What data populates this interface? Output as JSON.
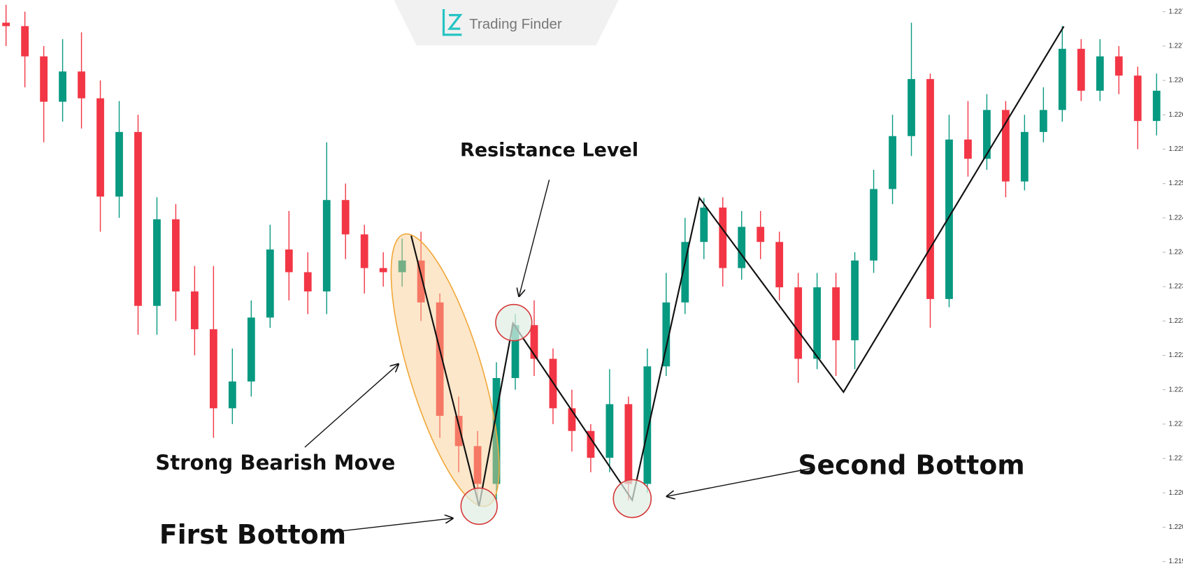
{
  "chart_data": {
    "type": "candlestick",
    "watermark": "Trading Finder",
    "annotations": [
      "Resistance Level",
      "Strong Bearish Move",
      "First Bottom",
      "Second Bottom"
    ],
    "up_color": "#089981",
    "down_color": "#f23645",
    "ylim": [
      1.21913,
      1.22767
    ],
    "yticks": [
      {
        "value": 1.2275,
        "label": "1.227"
      },
      {
        "value": 1.227,
        "label": "1.227"
      },
      {
        "value": 1.2265,
        "label": "1.226"
      },
      {
        "value": 1.226,
        "label": "1.226"
      },
      {
        "value": 1.2255,
        "label": "1.225"
      },
      {
        "value": 1.225,
        "label": "1.225"
      },
      {
        "value": 1.2245,
        "label": "1.224"
      },
      {
        "value": 1.224,
        "label": "1.224"
      },
      {
        "value": 1.2235,
        "label": "1.223"
      },
      {
        "value": 1.223,
        "label": "1.223"
      },
      {
        "value": 1.2225,
        "label": "1.222"
      },
      {
        "value": 1.222,
        "label": "1.222"
      },
      {
        "value": 1.2215,
        "label": "1.221"
      },
      {
        "value": 1.221,
        "label": "1.221"
      },
      {
        "value": 1.2205,
        "label": "1.220"
      },
      {
        "value": 1.22,
        "label": "1.220"
      },
      {
        "value": 1.2195,
        "label": "1.219"
      }
    ],
    "open": [
      1.22734,
      1.22729,
      1.22685,
      1.22619,
      1.22663,
      1.22624,
      1.22481,
      1.22575,
      1.22322,
      1.22448,
      1.22343,
      1.22288,
      1.22173,
      1.22212,
      1.22305,
      1.22404,
      1.22371,
      1.22343,
      1.22476,
      1.22426,
      1.22377,
      1.22371,
      1.22388,
      1.22327,
      1.22162,
      1.22118,
      1.22063,
      1.22217,
      1.22294,
      1.22245,
      1.22173,
      1.2214,
      1.22101,
      1.22179,
      1.22063,
      1.22234,
      1.22327,
      1.22415,
      1.22465,
      1.22377,
      1.22437,
      1.22415,
      1.22349,
      1.22245,
      1.22349,
      1.22272,
      1.22388,
      1.22492,
      1.22569,
      1.22652,
      1.22332,
      1.22564,
      1.22536,
      1.22607,
      1.22503,
      1.22575,
      1.22607,
      1.22696,
      1.22635,
      1.22685,
      1.22657,
      1.22591
    ],
    "high": [
      1.2276,
      1.2275,
      1.227,
      1.2271,
      1.2272,
      1.2265,
      1.2262,
      1.226,
      1.2248,
      1.2247,
      1.2238,
      1.2238,
      1.2226,
      1.2233,
      1.2244,
      1.2246,
      1.224,
      1.2256,
      1.225,
      1.2244,
      1.224,
      1.2242,
      1.2243,
      1.2234,
      1.2219,
      1.2214,
      1.2224,
      1.2231,
      1.2233,
      1.2226,
      1.222,
      1.2215,
      1.2223,
      1.2219,
      1.2226,
      1.2237,
      1.2245,
      1.22479,
      1.2248,
      1.2246,
      1.2246,
      1.2243,
      1.2237,
      1.2237,
      1.2237,
      1.224,
      1.2252,
      1.226,
      1.22734,
      1.2266,
      1.226,
      1.2262,
      1.2263,
      1.2262,
      1.226,
      1.2264,
      1.22729,
      1.2271,
      1.2271,
      1.227,
      1.2267,
      1.2266
    ],
    "low": [
      1.227,
      1.2264,
      1.2256,
      1.2259,
      1.2258,
      1.2243,
      1.2245,
      1.2228,
      1.2228,
      1.223,
      1.2225,
      1.2213,
      1.2215,
      1.2219,
      1.2229,
      1.2233,
      1.2231,
      1.2231,
      1.2239,
      1.2234,
      1.2235,
      1.2235,
      1.223,
      1.2213,
      1.2208,
      1.22032,
      1.2204,
      1.222,
      1.2222,
      1.2215,
      1.2211,
      1.2208,
      1.2208,
      1.22039,
      1.2205,
      1.2222,
      1.2231,
      1.2239,
      1.2235,
      1.2236,
      1.2239,
      1.2233,
      1.2221,
      1.2223,
      1.2222,
      1.2223,
      1.2237,
      1.2247,
      1.2254,
      1.2229,
      1.2232,
      1.2251,
      1.2252,
      1.2248,
      1.2249,
      1.2256,
      1.2259,
      1.2262,
      1.2262,
      1.2263,
      1.2255,
      1.2257
    ],
    "close": [
      1.22729,
      1.22685,
      1.22619,
      1.22663,
      1.22624,
      1.22481,
      1.22575,
      1.22322,
      1.22448,
      1.22343,
      1.22288,
      1.22173,
      1.22212,
      1.22305,
      1.22404,
      1.22371,
      1.22343,
      1.22476,
      1.22426,
      1.22377,
      1.22371,
      1.22388,
      1.22327,
      1.22162,
      1.22118,
      1.22063,
      1.22217,
      1.22294,
      1.22245,
      1.22173,
      1.2214,
      1.22101,
      1.22179,
      1.22063,
      1.22234,
      1.22327,
      1.22415,
      1.22465,
      1.22377,
      1.22437,
      1.22415,
      1.22349,
      1.22245,
      1.22349,
      1.22272,
      1.22388,
      1.22492,
      1.22569,
      1.22652,
      1.22332,
      1.22564,
      1.22536,
      1.22607,
      1.22503,
      1.22575,
      1.22607,
      1.22696,
      1.22635,
      1.22685,
      1.22657,
      1.22591,
      1.22635
    ]
  }
}
